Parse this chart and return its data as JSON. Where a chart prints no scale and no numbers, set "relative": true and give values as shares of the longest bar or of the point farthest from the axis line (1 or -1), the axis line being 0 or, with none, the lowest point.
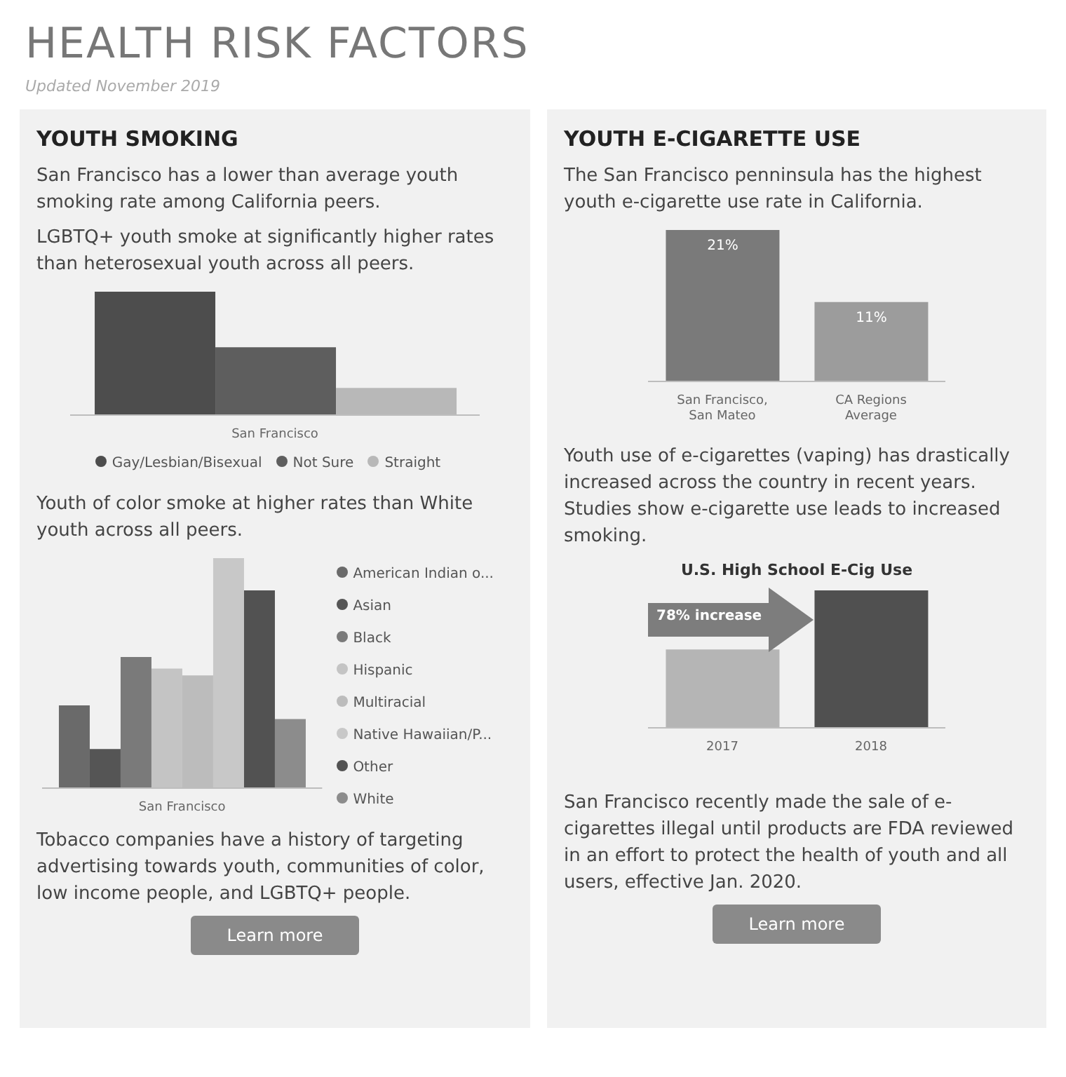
{
  "chart_data": [
    {
      "type": "other",
      "title": "HEALTH RISK FACTORS",
      "subtitle": "Updated November 2019"
    },
    {
      "type": "bar",
      "title": "YOUTH SMOKING",
      "annotations": [
        "San Francisco has a lower than average youth smoking rate among California peers.",
        "LGBTQ+ youth smoke at significantly higher rates than heterosexual youth across all peers."
      ],
      "xlabel": "San Francisco",
      "categories": [
        null
      ],
      "relative": true,
      "legend": "bottom",
      "series": [
        {
          "name": "Gay/Lesbian/Bisexual",
          "color": "#4d4d4d",
          "values": [
            1
          ]
        },
        {
          "name": "Not Sure",
          "color": "#5e5e5e",
          "values": [
            0.55
          ]
        },
        {
          "name": "Straight",
          "color": "#b8b8b8",
          "values": [
            0.22
          ]
        }
      ]
    },
    {
      "type": "bar",
      "annotations": [
        "Youth of color smoke at higher rates than White youth across all peers.",
        "Tobacco companies have a history of targeting advertising towards youth, communities of color, low income people, and LGBTQ+ people.",
        "Learn more"
      ],
      "xlabel": "San Francisco",
      "categories": [
        null
      ],
      "relative": true,
      "legend": "right",
      "series": [
        {
          "name": "American Indian o...",
          "color": "#6a6a6a",
          "values": [
            0.36
          ]
        },
        {
          "name": "Asian",
          "color": "#555555",
          "values": [
            0.17
          ]
        },
        {
          "name": "Black",
          "color": "#7a7a7a",
          "values": [
            0.57
          ]
        },
        {
          "name": "Hispanic",
          "color": "#c4c4c4",
          "values": [
            0.52
          ]
        },
        {
          "name": "Multiracial",
          "color": "#bcbcbc",
          "values": [
            0.49
          ]
        },
        {
          "name": "Native Hawaiian/P...",
          "color": "#c8c8c8",
          "values": [
            1
          ]
        },
        {
          "name": "Other",
          "color": "#525252",
          "values": [
            0.86
          ]
        },
        {
          "name": "White",
          "color": "#8c8c8c",
          "values": [
            0.3
          ]
        }
      ]
    },
    {
      "type": "bar",
      "title": "YOUTH E-CIGARETTE USE",
      "annotations": [
        "The San Francisco penninsula has the highest youth e-cigarette use rate in California."
      ],
      "categories": [
        "San Francisco, San Mateo",
        "CA Regions Average"
      ],
      "values": [
        21,
        11
      ],
      "value_labels": [
        "21%",
        "11%"
      ],
      "colors": [
        "#7a7a7a",
        "#9c9c9c"
      ]
    },
    {
      "type": "bar",
      "title": "U.S. High School E-Cig Use",
      "annotations": [
        "Youth use of e-cigarettes (vaping) has drastically increased across the country in recent years. Studies show e-cigarette use leads to increased smoking.",
        "78% increase",
        "San Francisco recently made the sale of e-cigarettes illegal until products are FDA reviewed in an effort to protect the health of youth and all users, effective Jan. 2020.",
        "Learn more"
      ],
      "categories": [
        "2017",
        "2018"
      ],
      "relative": true,
      "values": [
        0.57,
        1
      ],
      "colors": [
        "#b5b5b5",
        "#505050"
      ]
    }
  ]
}
